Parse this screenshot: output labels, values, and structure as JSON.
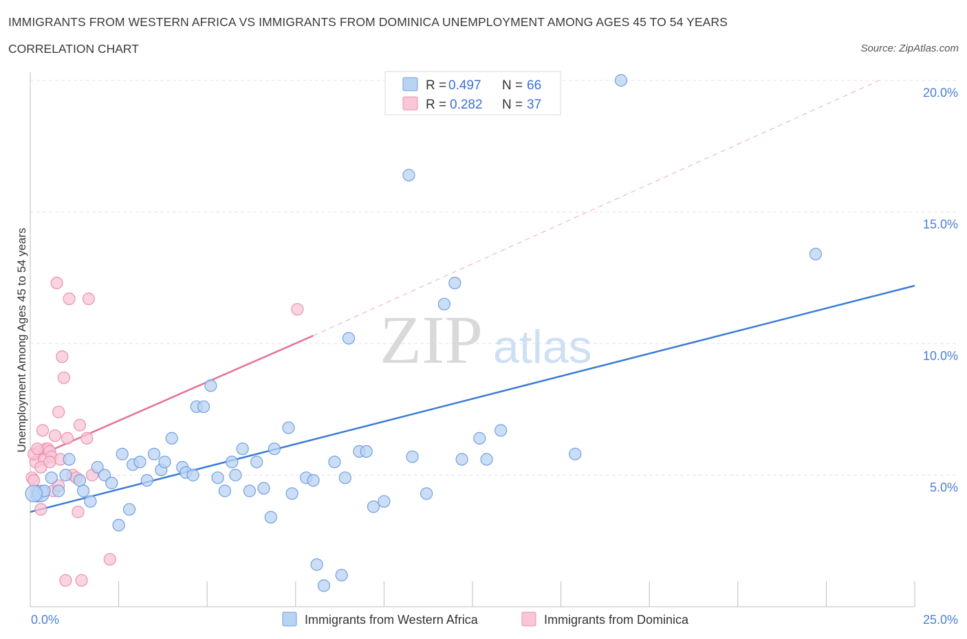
{
  "header": {
    "title": "IMMIGRANTS FROM WESTERN AFRICA VS IMMIGRANTS FROM DOMINICA UNEMPLOYMENT AMONG AGES 45 TO 54 YEARS",
    "subtitle": "CORRELATION CHART",
    "source": "Source: ZipAtlas.com"
  },
  "watermark": {
    "zip": "ZIP",
    "atlas": "atlas"
  },
  "legend": {
    "rows": [
      {
        "r_label": "R = ",
        "r_value": "0.497",
        "n_label": "N = ",
        "n_value": "66"
      },
      {
        "r_label": "R = ",
        "r_value": "0.282",
        "n_label": "N = ",
        "n_value": "37"
      }
    ]
  },
  "colors": {
    "blue_fill": "#b9d3f3",
    "blue_stroke": "#6f9fe0",
    "blue_line": "#3a7bd5",
    "pink_fill": "#f8c6d6",
    "pink_stroke": "#ec8fae",
    "pink_line": "#e76f98",
    "grid": "#e3e3e3",
    "tick_text": "#4a7fd4"
  },
  "chart_data": {
    "type": "scatter",
    "title": "IMMIGRANTS FROM WESTERN AFRICA VS IMMIGRANTS FROM DOMINICA UNEMPLOYMENT AMONG AGES 45 TO 54 YEARS",
    "xlabel": "",
    "ylabel": "Unemployment Among Ages 45 to 54 years",
    "xlim": [
      0,
      25
    ],
    "ylim": [
      0,
      20
    ],
    "x_tick_labels": [
      "0.0%",
      "25.0%"
    ],
    "y_ticks": [
      5,
      10,
      15,
      20
    ],
    "y_tick_labels": [
      "5.0%",
      "10.0%",
      "15.0%",
      "20.0%"
    ],
    "grid": true,
    "series": [
      {
        "name": "Immigrants from Western Africa",
        "color": "#6f9fe0",
        "r": 0.497,
        "n": 66,
        "trend": {
          "x": [
            0.0,
            25.0
          ],
          "y": [
            3.6,
            12.2
          ]
        },
        "points": [
          [
            0.2,
            4.2
          ],
          [
            0.3,
            4.3
          ],
          [
            0.4,
            4.4
          ],
          [
            0.6,
            4.9
          ],
          [
            0.8,
            4.4
          ],
          [
            1.0,
            5.0
          ],
          [
            1.1,
            5.6
          ],
          [
            1.4,
            4.8
          ],
          [
            1.5,
            4.4
          ],
          [
            1.7,
            4.0
          ],
          [
            1.9,
            5.3
          ],
          [
            2.1,
            5.0
          ],
          [
            2.3,
            4.7
          ],
          [
            2.5,
            3.1
          ],
          [
            2.6,
            5.8
          ],
          [
            2.8,
            3.7
          ],
          [
            2.9,
            5.4
          ],
          [
            3.1,
            5.5
          ],
          [
            3.3,
            4.8
          ],
          [
            3.5,
            5.8
          ],
          [
            3.7,
            5.2
          ],
          [
            3.8,
            5.5
          ],
          [
            4.0,
            6.4
          ],
          [
            4.3,
            5.3
          ],
          [
            4.4,
            5.1
          ],
          [
            4.6,
            5.0
          ],
          [
            4.7,
            7.6
          ],
          [
            4.9,
            7.6
          ],
          [
            5.1,
            8.4
          ],
          [
            5.3,
            4.9
          ],
          [
            5.5,
            4.4
          ],
          [
            5.7,
            5.5
          ],
          [
            5.8,
            5.0
          ],
          [
            6.0,
            6.0
          ],
          [
            6.2,
            4.4
          ],
          [
            6.4,
            5.5
          ],
          [
            6.6,
            4.5
          ],
          [
            6.8,
            3.4
          ],
          [
            6.9,
            6.0
          ],
          [
            7.3,
            6.8
          ],
          [
            7.4,
            4.3
          ],
          [
            7.8,
            4.9
          ],
          [
            8.0,
            4.8
          ],
          [
            8.1,
            1.6
          ],
          [
            8.3,
            0.8
          ],
          [
            8.6,
            5.5
          ],
          [
            8.8,
            1.2
          ],
          [
            8.9,
            4.9
          ],
          [
            9.0,
            10.2
          ],
          [
            9.3,
            5.9
          ],
          [
            9.5,
            5.9
          ],
          [
            9.7,
            3.8
          ],
          [
            10.0,
            4.0
          ],
          [
            10.7,
            16.4
          ],
          [
            10.8,
            5.7
          ],
          [
            11.2,
            4.3
          ],
          [
            11.7,
            11.5
          ],
          [
            12.0,
            12.3
          ],
          [
            12.2,
            5.6
          ],
          [
            12.7,
            6.4
          ],
          [
            12.9,
            5.6
          ],
          [
            13.3,
            6.7
          ],
          [
            15.4,
            5.8
          ],
          [
            16.7,
            20.0
          ],
          [
            22.2,
            13.4
          ],
          [
            0.1,
            4.3
          ]
        ]
      },
      {
        "name": "Immigrants from Dominica",
        "color": "#ec8fae",
        "r": 0.282,
        "n": 37,
        "trend": {
          "x": [
            0.0,
            8.0
          ],
          "y": [
            5.6,
            10.3
          ]
        },
        "trend_extension": {
          "x": [
            8.0,
            24.0
          ],
          "y": [
            10.3,
            20.0
          ]
        },
        "points": [
          [
            0.05,
            4.9
          ],
          [
            0.1,
            4.8
          ],
          [
            0.15,
            5.5
          ],
          [
            0.2,
            4.4
          ],
          [
            0.25,
            5.9
          ],
          [
            0.3,
            3.7
          ],
          [
            0.35,
            6.7
          ],
          [
            0.4,
            5.6
          ],
          [
            0.45,
            6.0
          ],
          [
            0.5,
            6.0
          ],
          [
            0.55,
            5.9
          ],
          [
            0.6,
            5.7
          ],
          [
            0.65,
            4.4
          ],
          [
            0.7,
            6.5
          ],
          [
            0.75,
            12.3
          ],
          [
            0.8,
            7.4
          ],
          [
            0.85,
            5.6
          ],
          [
            0.9,
            9.5
          ],
          [
            0.95,
            8.7
          ],
          [
            1.0,
            1.0
          ],
          [
            1.05,
            6.4
          ],
          [
            1.1,
            11.7
          ],
          [
            1.2,
            5.0
          ],
          [
            1.3,
            4.9
          ],
          [
            1.35,
            3.6
          ],
          [
            1.4,
            6.9
          ],
          [
            1.45,
            1.0
          ],
          [
            1.6,
            6.4
          ],
          [
            1.65,
            11.7
          ],
          [
            1.75,
            5.0
          ],
          [
            2.25,
            1.8
          ],
          [
            7.55,
            11.3
          ],
          [
            0.1,
            5.8
          ],
          [
            0.3,
            5.3
          ],
          [
            0.55,
            5.5
          ],
          [
            0.2,
            6.0
          ],
          [
            0.8,
            4.6
          ]
        ]
      }
    ]
  },
  "bottom_legend": [
    {
      "label": "Immigrants from Western Africa"
    },
    {
      "label": "Immigrants from Dominica"
    }
  ]
}
